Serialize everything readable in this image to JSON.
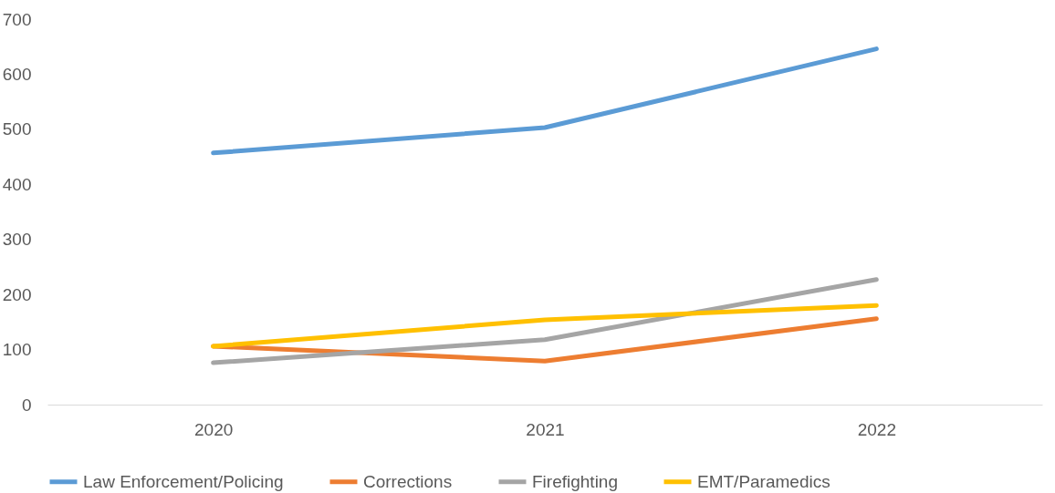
{
  "chart_data": {
    "type": "line",
    "categories": [
      "2020",
      "2021",
      "2022"
    ],
    "series": [
      {
        "name": "Law Enforcement/Policing",
        "color": "#5b9bd5",
        "values": [
          457,
          503,
          646
        ]
      },
      {
        "name": "Corrections",
        "color": "#ed7d31",
        "values": [
          106,
          79,
          156
        ]
      },
      {
        "name": "Firefighting",
        "color": "#a5a5a5",
        "values": [
          76,
          118,
          227
        ]
      },
      {
        "name": "EMT/Paramedics",
        "color": "#ffc000",
        "values": [
          106,
          154,
          180
        ]
      }
    ],
    "ylim": [
      0,
      700
    ],
    "yticks": [
      0,
      100,
      200,
      300,
      400,
      500,
      600,
      700
    ],
    "grid": false,
    "legend": "bottom",
    "marker": "none",
    "line_style": "solid"
  }
}
